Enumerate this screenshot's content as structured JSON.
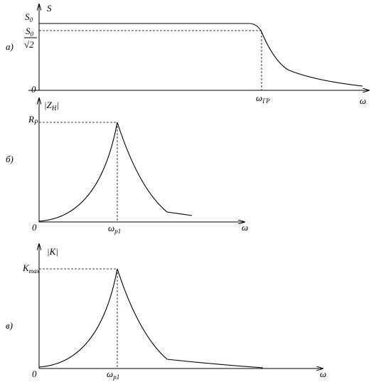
{
  "panels": [
    {
      "tag": "а)",
      "y_label": "S",
      "levels": [
        {
          "main": "S",
          "sub": "0"
        },
        {
          "num_main": "S",
          "num_sub": "0",
          "den": "√2"
        }
      ],
      "origin": "0",
      "x_marker": {
        "main": "ω",
        "sub": "ГР"
      },
      "x_label": "ω"
    },
    {
      "tag": "б)",
      "y_label": {
        "main": "|Z",
        "sub": "Н",
        "end": "|"
      },
      "levels": [
        {
          "main": "R",
          "sub": "Р"
        }
      ],
      "origin": "0",
      "x_marker": {
        "main": "ω",
        "sub": "р1"
      },
      "x_label": "ω"
    },
    {
      "tag": "в)",
      "y_label": "|K|",
      "levels": [
        {
          "main": "K",
          "sub": "max"
        }
      ],
      "origin": "0",
      "x_marker": {
        "main": "ω",
        "sub": "р1"
      },
      "x_label": "ω"
    }
  ]
}
